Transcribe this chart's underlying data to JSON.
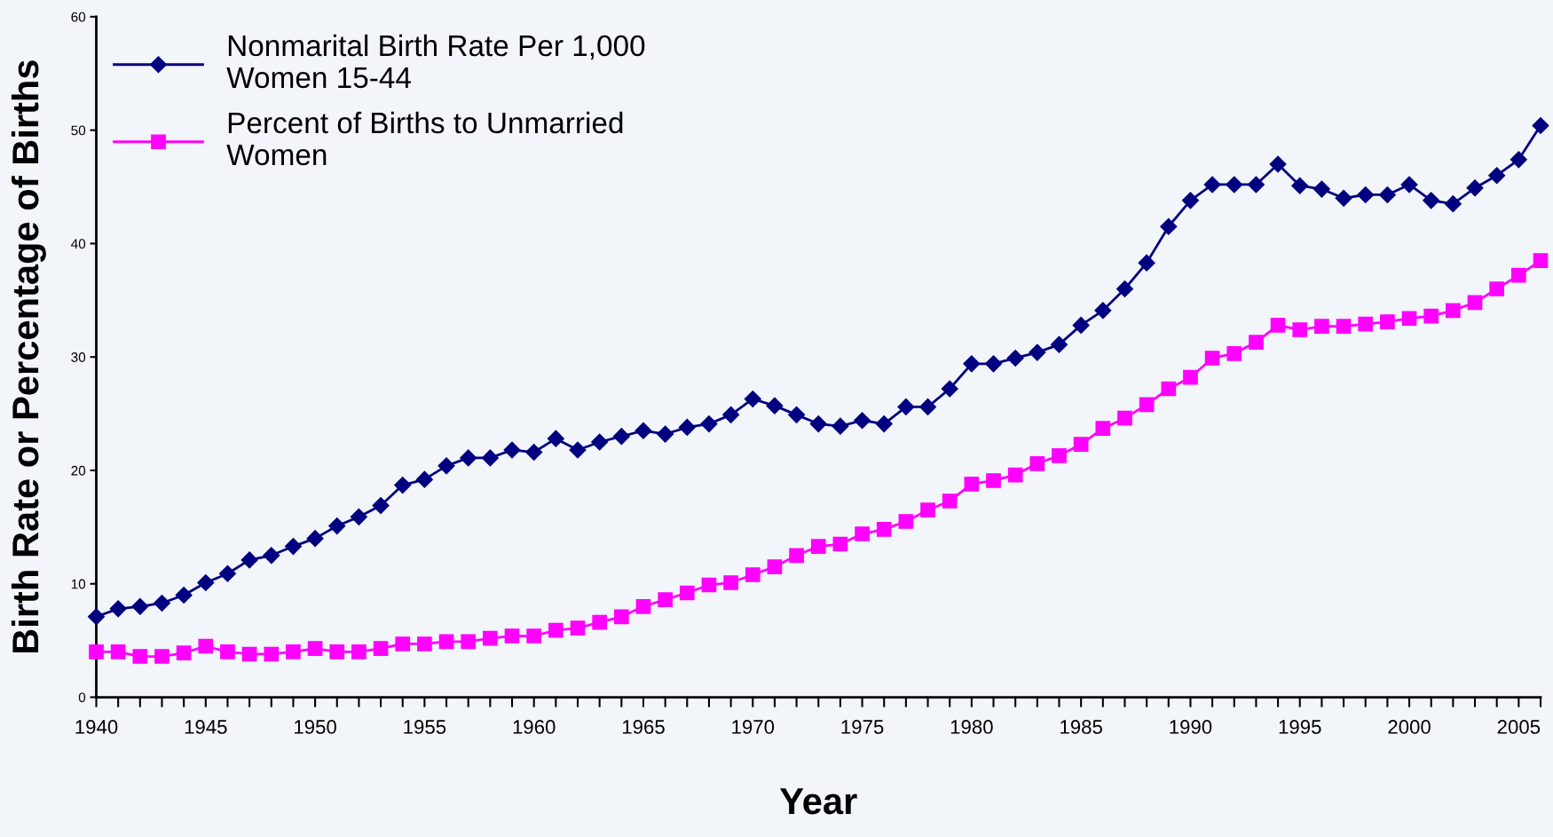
{
  "chart_data": {
    "type": "line",
    "xlabel": "Year",
    "ylabel": "Birth Rate or Percentage of Births",
    "x": [
      1940,
      1941,
      1942,
      1943,
      1944,
      1945,
      1946,
      1947,
      1948,
      1949,
      1950,
      1951,
      1952,
      1953,
      1954,
      1955,
      1956,
      1957,
      1958,
      1959,
      1960,
      1961,
      1962,
      1963,
      1964,
      1965,
      1966,
      1967,
      1968,
      1969,
      1970,
      1971,
      1972,
      1973,
      1974,
      1975,
      1976,
      1977,
      1978,
      1979,
      1980,
      1981,
      1982,
      1983,
      1984,
      1985,
      1986,
      1987,
      1988,
      1989,
      1990,
      1991,
      1992,
      1993,
      1994,
      1995,
      1996,
      1997,
      1998,
      1999,
      2000,
      2001,
      2002,
      2003,
      2004,
      2005,
      2006
    ],
    "series": [
      {
        "name": "Nonmarital Birth Rate Per 1,000\nWomen 15-44",
        "color": "#000080",
        "marker": "diamond",
        "values": [
          7.1,
          7.8,
          8.0,
          8.3,
          9.0,
          10.1,
          10.9,
          12.1,
          12.5,
          13.3,
          14.0,
          15.1,
          15.9,
          16.9,
          18.7,
          19.2,
          20.4,
          21.1,
          21.1,
          21.8,
          21.6,
          22.8,
          21.8,
          22.5,
          23.0,
          23.5,
          23.2,
          23.8,
          24.1,
          24.9,
          26.3,
          25.7,
          24.9,
          24.1,
          23.9,
          24.4,
          24.1,
          25.6,
          25.6,
          27.2,
          29.4,
          29.4,
          29.9,
          30.4,
          31.1,
          32.8,
          34.1,
          36.0,
          38.3,
          41.5,
          43.8,
          45.2,
          45.2,
          45.2,
          47.0,
          45.1,
          44.8,
          44.0,
          44.3,
          44.3,
          45.2,
          43.8,
          43.5,
          44.9,
          46.0,
          47.4,
          50.4
        ]
      },
      {
        "name": "Percent of Births to Unmarried\nWomen",
        "color": "#ff00ff",
        "marker": "square",
        "values": [
          4.0,
          4.0,
          3.6,
          3.6,
          3.9,
          4.5,
          4.0,
          3.8,
          3.8,
          4.0,
          4.3,
          4.0,
          4.0,
          4.3,
          4.7,
          4.7,
          4.9,
          4.9,
          5.2,
          5.4,
          5.4,
          5.9,
          6.1,
          6.6,
          7.1,
          8.0,
          8.6,
          9.2,
          9.9,
          10.1,
          10.8,
          11.5,
          12.5,
          13.3,
          13.5,
          14.4,
          14.8,
          15.5,
          16.5,
          17.3,
          18.8,
          19.1,
          19.6,
          20.6,
          21.3,
          22.3,
          23.7,
          24.6,
          25.8,
          27.2,
          28.2,
          29.9,
          30.3,
          31.3,
          32.8,
          32.4,
          32.7,
          32.7,
          32.9,
          33.1,
          33.4,
          33.6,
          34.1,
          34.8,
          36.0,
          37.2,
          38.5
        ]
      }
    ],
    "xlim": [
      1940,
      2006
    ],
    "xticks": [
      1940,
      {
        "value": 1941,
        "label": null
      },
      {
        "value": 1942,
        "label": null
      },
      {
        "value": 1943,
        "label": null
      },
      {
        "value": 1944,
        "label": null
      },
      1945,
      {
        "value": 1946,
        "label": null
      },
      {
        "value": 1947,
        "label": null
      },
      {
        "value": 1948,
        "label": null
      },
      {
        "value": 1949,
        "label": null
      },
      1950,
      {
        "value": 1951,
        "label": null
      },
      {
        "value": 1952,
        "label": null
      },
      {
        "value": 1953,
        "label": null
      },
      {
        "value": 1954,
        "label": null
      },
      1955,
      {
        "value": 1956,
        "label": null
      },
      {
        "value": 1957,
        "label": null
      },
      {
        "value": 1958,
        "label": null
      },
      {
        "value": 1959,
        "label": null
      },
      1960,
      {
        "value": 1961,
        "label": null
      },
      {
        "value": 1962,
        "label": null
      },
      {
        "value": 1963,
        "label": null
      },
      {
        "value": 1964,
        "label": null
      },
      1965,
      {
        "value": 1966,
        "label": null
      },
      {
        "value": 1967,
        "label": null
      },
      {
        "value": 1968,
        "label": null
      },
      {
        "value": 1969,
        "label": null
      },
      1970,
      {
        "value": 1971,
        "label": null
      },
      {
        "value": 1972,
        "label": null
      },
      {
        "value": 1973,
        "label": null
      },
      {
        "value": 1974,
        "label": null
      },
      1975,
      {
        "value": 1976,
        "label": null
      },
      {
        "value": 1977,
        "label": null
      },
      {
        "value": 1978,
        "label": null
      },
      {
        "value": 1979,
        "label": null
      },
      1980,
      {
        "value": 1981,
        "label": null
      },
      {
        "value": 1982,
        "label": null
      },
      {
        "value": 1983,
        "label": null
      },
      {
        "value": 1984,
        "label": null
      },
      1985,
      {
        "value": 1986,
        "label": null
      },
      {
        "value": 1987,
        "label": null
      },
      {
        "value": 1988,
        "label": null
      },
      {
        "value": 1989,
        "label": null
      },
      1990,
      {
        "value": 1991,
        "label": null
      },
      {
        "value": 1992,
        "label": null
      },
      {
        "value": 1993,
        "label": null
      },
      {
        "value": 1994,
        "label": null
      },
      1995,
      {
        "value": 1996,
        "label": null
      },
      {
        "value": 1997,
        "label": null
      },
      {
        "value": 1998,
        "label": null
      },
      {
        "value": 1999,
        "label": null
      },
      2000,
      {
        "value": 2001,
        "label": null
      },
      {
        "value": 2002,
        "label": null
      },
      {
        "value": 2003,
        "label": null
      },
      {
        "value": 2004,
        "label": null
      },
      2005,
      {
        "value": 2006,
        "label": null
      }
    ],
    "ylim": [
      0,
      60
    ],
    "yticks": [
      0,
      10,
      20,
      30,
      40,
      50,
      60
    ],
    "grid": false,
    "legend": "top left",
    "line_style": "solid"
  }
}
